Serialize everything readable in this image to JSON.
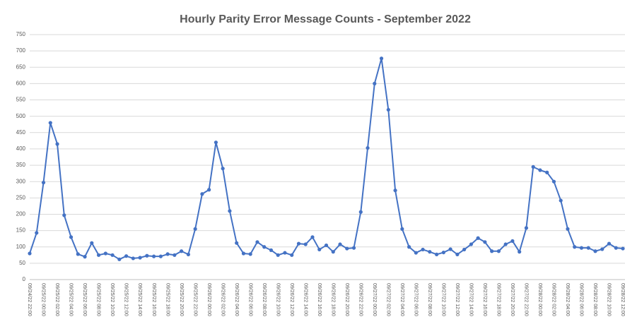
{
  "chart_data": {
    "type": "line",
    "title": "Hourly Parity Error Message Counts - September 2022",
    "categories": [
      "09/24/22 22:00",
      null,
      "09/25/22 00:00",
      null,
      "09/25/22 02:00",
      null,
      "09/25/22 04:00",
      null,
      "09/25/22 06:00",
      null,
      "09/25/22 08:00",
      null,
      "09/25/22 10:00",
      null,
      "09/25/22 12:00",
      null,
      "09/25/22 14:00",
      null,
      "09/25/22 16:00",
      null,
      "09/25/22 18:00",
      null,
      "09/25/22 20:00",
      null,
      "09/25/22 22:00",
      null,
      "09/26/22 00:00",
      null,
      "09/26/22 02:00",
      null,
      "09/26/22 04:00",
      null,
      "09/26/22 06:00",
      null,
      "09/26/22 08:00",
      null,
      "09/26/22 10:00",
      null,
      "09/26/22 12:00",
      null,
      "09/26/22 14:00",
      null,
      "09/26/22 16:00",
      null,
      "09/26/22 18:00",
      null,
      "09/26/22 20:00",
      null,
      "09/26/22 22:00",
      null,
      "09/27/22 00:00",
      null,
      "09/27/22 02:00",
      null,
      "09/27/22 04:00",
      null,
      "09/27/22 06:00",
      null,
      "09/27/22 08:00",
      null,
      "09/27/22 10:00",
      null,
      "09/27/22 12:00",
      null,
      "09/27/22 14:00",
      null,
      "09/27/22 16:00",
      null,
      "09/27/22 18:00",
      null,
      "09/27/22 20:00",
      null,
      "09/27/22 22:00",
      null,
      "09/28/22 00:00",
      null,
      "09/28/22 02:00",
      null,
      "09/28/22 04:00",
      null,
      "09/28/22 06:00",
      null,
      "09/28/22 08:00",
      null,
      "09/28/22 10:00",
      null,
      "09/28/22 12:00"
    ],
    "values": [
      80,
      143,
      297,
      480,
      415,
      197,
      130,
      78,
      70,
      112,
      75,
      80,
      75,
      62,
      72,
      65,
      67,
      73,
      71,
      71,
      78,
      75,
      87,
      77,
      155,
      262,
      275,
      420,
      340,
      210,
      112,
      80,
      78,
      115,
      100,
      90,
      75,
      82,
      75,
      110,
      108,
      130,
      92,
      105,
      85,
      108,
      95,
      97,
      207,
      403,
      600,
      677,
      520,
      273,
      155,
      100,
      82,
      92,
      85,
      77,
      83,
      93,
      77,
      92,
      108,
      127,
      115,
      87,
      87,
      108,
      118,
      85,
      158,
      345,
      335,
      328,
      300,
      242,
      155,
      100,
      97,
      97,
      87,
      93,
      110,
      97,
      95
    ],
    "color": "#4472c4",
    "ylim": [
      0,
      750
    ],
    "yticks": [
      0,
      50,
      100,
      150,
      200,
      250,
      300,
      350,
      400,
      450,
      500,
      550,
      600,
      650,
      700,
      750
    ],
    "grid": true
  }
}
